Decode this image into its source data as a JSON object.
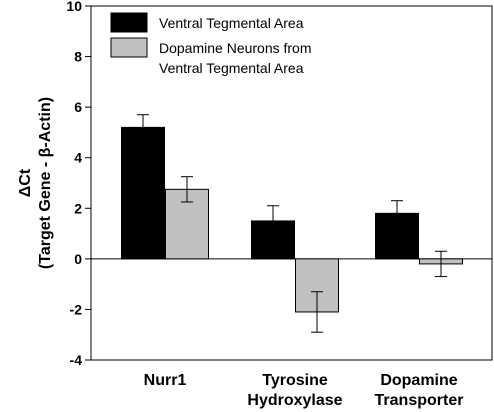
{
  "chart_data": {
    "type": "bar",
    "title": "",
    "ylabel_line1": "ΔCt",
    "ylabel_line2": "(Target Gene - β-Actin)",
    "xlabel": "",
    "ylim": [
      -4,
      10
    ],
    "yticks": [
      -4,
      -2,
      0,
      2,
      4,
      6,
      8,
      10
    ],
    "categories": [
      {
        "line1": "Nurr1",
        "line2": ""
      },
      {
        "line1": "Tyrosine",
        "line2": "Hydroxylase"
      },
      {
        "line1": "Dopamine",
        "line2": "Transporter"
      }
    ],
    "series": [
      {
        "name_lines": [
          "Ventral Tegmental Area"
        ],
        "color": "#000000",
        "values": [
          5.2,
          1.5,
          1.8
        ],
        "errors": [
          0.5,
          0.6,
          0.5
        ]
      },
      {
        "name_lines": [
          "Dopamine Neurons from",
          "Ventral Tegmental Area"
        ],
        "color": "#c0c0c0",
        "values": [
          2.75,
          -2.1,
          -0.2
        ],
        "errors": [
          0.5,
          0.8,
          0.5
        ]
      }
    ],
    "legend_position": "top-left",
    "grid": false
  }
}
